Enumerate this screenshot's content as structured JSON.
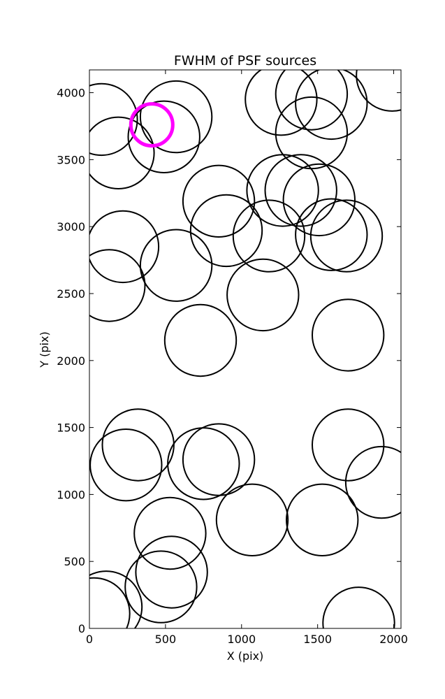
{
  "chart_data": {
    "type": "scatter",
    "title": "FWHM of PSF sources",
    "xlabel": "X (pix)",
    "ylabel": "Y (pix)",
    "xlim": [
      0,
      2048
    ],
    "ylim": [
      0,
      4170
    ],
    "xticks": [
      0,
      500,
      1000,
      1500,
      2000
    ],
    "yticks": [
      0,
      500,
      1000,
      1500,
      2000,
      2500,
      3000,
      3500,
      4000
    ],
    "xtick_labels": [
      "0",
      "500",
      "1000",
      "1500",
      "2000"
    ],
    "ytick_labels": [
      "0",
      "500",
      "1000",
      "1500",
      "2000",
      "2500",
      "3000",
      "3500",
      "4000"
    ],
    "grid": false,
    "marker_radius": 235,
    "series": [
      {
        "color": "#000000",
        "points": [
          {
            "x": 80,
            "y": 3800
          },
          {
            "x": 570,
            "y": 3820
          },
          {
            "x": 190,
            "y": 3550
          },
          {
            "x": 490,
            "y": 3670
          },
          {
            "x": 1260,
            "y": 3950
          },
          {
            "x": 1460,
            "y": 3990
          },
          {
            "x": 1590,
            "y": 3920
          },
          {
            "x": 1460,
            "y": 3700
          },
          {
            "x": 1990,
            "y": 4130
          },
          {
            "x": 850,
            "y": 3190
          },
          {
            "x": 1270,
            "y": 3270
          },
          {
            "x": 1390,
            "y": 3270
          },
          {
            "x": 1510,
            "y": 3200
          },
          {
            "x": 900,
            "y": 2970
          },
          {
            "x": 1180,
            "y": 2930
          },
          {
            "x": 1590,
            "y": 2940
          },
          {
            "x": 1690,
            "y": 2930
          },
          {
            "x": 220,
            "y": 2850
          },
          {
            "x": 130,
            "y": 2560
          },
          {
            "x": 570,
            "y": 2710
          },
          {
            "x": 1140,
            "y": 2490
          },
          {
            "x": 730,
            "y": 2150
          },
          {
            "x": 1700,
            "y": 2190
          },
          {
            "x": 320,
            "y": 1370
          },
          {
            "x": 240,
            "y": 1220
          },
          {
            "x": 750,
            "y": 1230
          },
          {
            "x": 850,
            "y": 1260
          },
          {
            "x": 1700,
            "y": 1370
          },
          {
            "x": 1920,
            "y": 1090
          },
          {
            "x": 530,
            "y": 710
          },
          {
            "x": 1070,
            "y": 810
          },
          {
            "x": 1530,
            "y": 810
          },
          {
            "x": 540,
            "y": 420
          },
          {
            "x": 470,
            "y": 310
          },
          {
            "x": 110,
            "y": 160
          },
          {
            "x": 30,
            "y": 110
          },
          {
            "x": 1770,
            "y": 40
          }
        ]
      },
      {
        "color": "#ff00ff",
        "points": [
          {
            "x": 410,
            "y": 3760
          }
        ]
      }
    ]
  }
}
